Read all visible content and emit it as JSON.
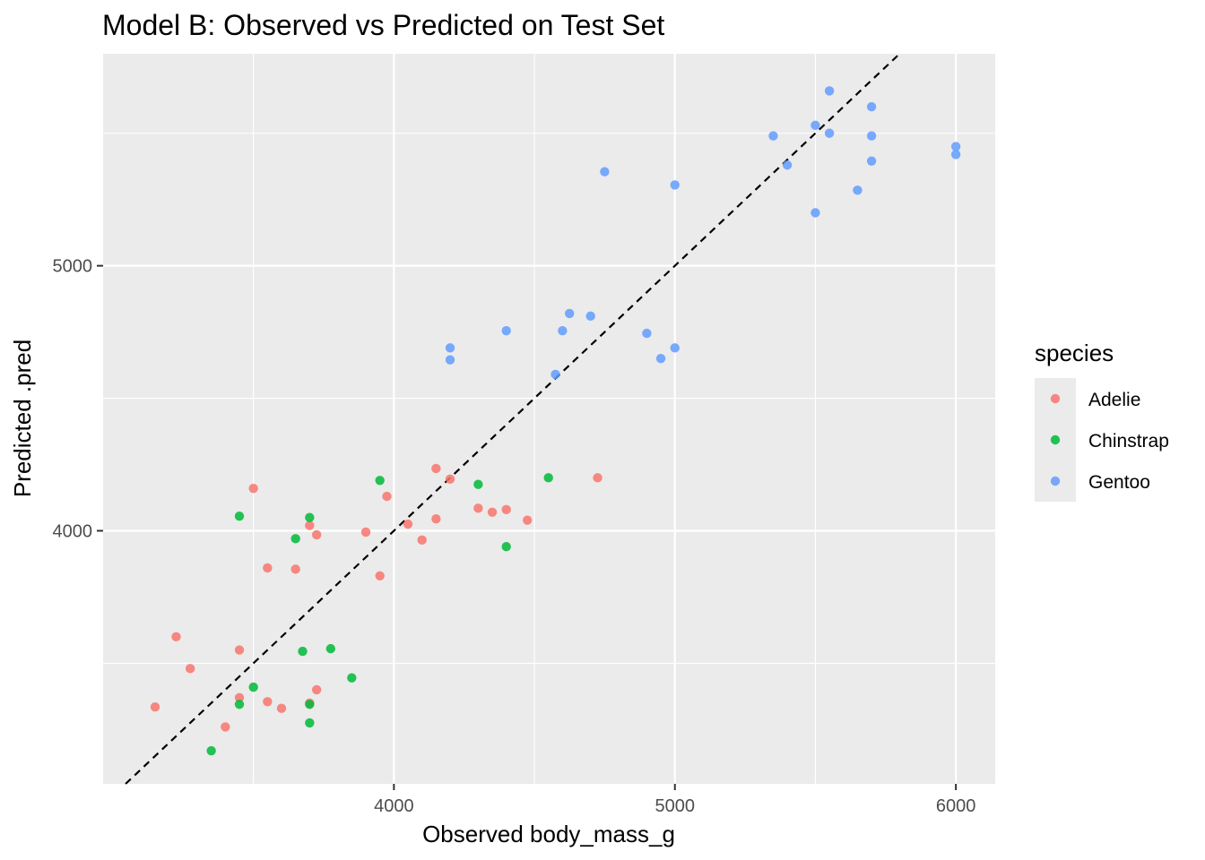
{
  "chart_data": {
    "type": "scatter",
    "title": "Model B: Observed vs Predicted on Test Set",
    "xlabel": "Observed body_mass_g",
    "ylabel": "Predicted .pred",
    "xlim": [
      2965,
      6140
    ],
    "ylim": [
      3045,
      5800
    ],
    "x_ticks": [
      4000,
      5000,
      6000
    ],
    "y_ticks": [
      4000,
      5000
    ],
    "x_minor_ticks": [
      3500,
      4500,
      5500
    ],
    "y_minor_ticks": [
      3500,
      4500,
      5500
    ],
    "grid": true,
    "reference_line": {
      "style": "dashed",
      "slope": 1,
      "intercept": 0,
      "color": "#000000"
    },
    "legend": {
      "title": "species",
      "placement": "right"
    },
    "series": [
      {
        "name": "Adelie",
        "color": "#F8766D",
        "points": [
          [
            3150,
            3335
          ],
          [
            3225,
            3600
          ],
          [
            3275,
            3480
          ],
          [
            3400,
            3260
          ],
          [
            3450,
            3550
          ],
          [
            3450,
            3370
          ],
          [
            3500,
            4160
          ],
          [
            3550,
            3860
          ],
          [
            3550,
            3355
          ],
          [
            3600,
            3330
          ],
          [
            3650,
            3855
          ],
          [
            3700,
            4020
          ],
          [
            3700,
            3350
          ],
          [
            3725,
            3985
          ],
          [
            3725,
            3400
          ],
          [
            3900,
            3995
          ],
          [
            3950,
            3830
          ],
          [
            3975,
            4130
          ],
          [
            4050,
            4025
          ],
          [
            4100,
            3965
          ],
          [
            4150,
            4235
          ],
          [
            4150,
            4045
          ],
          [
            4200,
            4195
          ],
          [
            4300,
            4085
          ],
          [
            4350,
            4070
          ],
          [
            4400,
            4080
          ],
          [
            4475,
            4040
          ],
          [
            4725,
            4200
          ]
        ]
      },
      {
        "name": "Chinstrap",
        "color": "#00BA38",
        "points": [
          [
            3350,
            3170
          ],
          [
            3450,
            4055
          ],
          [
            3450,
            3345
          ],
          [
            3500,
            3410
          ],
          [
            3650,
            3970
          ],
          [
            3675,
            3545
          ],
          [
            3700,
            4050
          ],
          [
            3700,
            3345
          ],
          [
            3700,
            3275
          ],
          [
            3775,
            3555
          ],
          [
            3850,
            3445
          ],
          [
            3950,
            4190
          ],
          [
            4300,
            4175
          ],
          [
            4400,
            3940
          ],
          [
            4550,
            4200
          ]
        ]
      },
      {
        "name": "Gentoo",
        "color": "#619CFF",
        "points": [
          [
            4200,
            4690
          ],
          [
            4200,
            4645
          ],
          [
            4400,
            4755
          ],
          [
            4575,
            4590
          ],
          [
            4600,
            4755
          ],
          [
            4625,
            4820
          ],
          [
            4700,
            4810
          ],
          [
            4750,
            5355
          ],
          [
            4900,
            4745
          ],
          [
            4950,
            4650
          ],
          [
            5000,
            5305
          ],
          [
            5000,
            4690
          ],
          [
            5350,
            5490
          ],
          [
            5400,
            5380
          ],
          [
            5500,
            5530
          ],
          [
            5500,
            5200
          ],
          [
            5550,
            5660
          ],
          [
            5550,
            5500
          ],
          [
            5650,
            5285
          ],
          [
            5700,
            5600
          ],
          [
            5700,
            5490
          ],
          [
            5700,
            5395
          ],
          [
            6000,
            5450
          ],
          [
            6000,
            5420
          ]
        ]
      }
    ]
  }
}
